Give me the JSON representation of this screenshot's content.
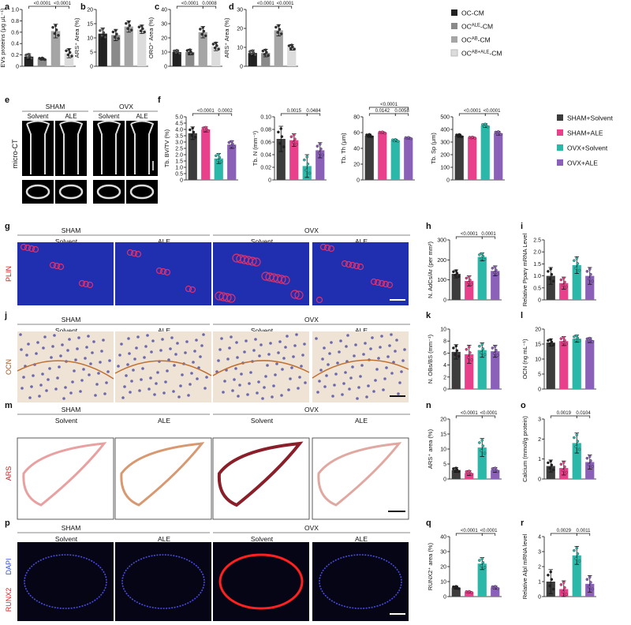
{
  "colors": {
    "oc": "#222222",
    "ocale": "#8a8a8a",
    "ocab": "#a5a5a5",
    "ocabale": "#dcdcdc",
    "sham_solvent": "#3c3c3c",
    "sham_ale": "#e8408a",
    "ovx_solvent": "#2bb8a8",
    "ovx_ale": "#8a60b8",
    "plin_bg": "#1f2fb0",
    "ocn_bg": "#efe3d6",
    "ars_bg": "#ffffff",
    "runx_bg": "#050515"
  },
  "letters": [
    "a",
    "b",
    "c",
    "d",
    "e",
    "f",
    "g",
    "h",
    "i",
    "j",
    "k",
    "l",
    "m",
    "n",
    "o",
    "p",
    "q",
    "r"
  ],
  "legend_top": [
    "OC-CM",
    "OC^ALE-CM",
    "OC^AB-CM",
    "OC^AB+ALE-CM"
  ],
  "legend_mid": [
    "SHAM+Solvent",
    "SHAM+ALE",
    "OVX+Solvent",
    "OVX+ALE"
  ],
  "micro_ct_label": "micro-CT",
  "row_labels": {
    "g": "PLIN",
    "j": "OCN",
    "m": "ARS",
    "p_runx": "RUNX2",
    "p_dapi": "DAPI"
  },
  "group_headers": {
    "sham": "SHAM",
    "ovx": "OVX"
  },
  "treat_labels": [
    "Solvent",
    "ALE",
    "Solvent",
    "ALE"
  ],
  "chart_data": [
    {
      "id": "a",
      "type": "bar",
      "categories": [
        "OC-CM",
        "OC^ALE-CM",
        "OC^AB-CM",
        "OC^AB+ALE-CM"
      ],
      "values": [
        0.17,
        0.13,
        0.62,
        0.23
      ],
      "errors": [
        0.05,
        0.02,
        0.12,
        0.08
      ],
      "ylabel": "EVs proteins (μg μL⁻¹)",
      "ylim": [
        0,
        1.0
      ],
      "yticks": [
        "0",
        "0.2",
        "0.4",
        "0.6",
        "0.8",
        "1.0"
      ],
      "sig": [
        {
          "from": 0,
          "to": 2,
          "text": "<0.0001"
        },
        {
          "from": 2,
          "to": 3,
          "text": "<0.0001"
        }
      ]
    },
    {
      "id": "b",
      "type": "bar",
      "categories": [
        "OC-CM",
        "OC^ALE-CM",
        "OC^AB-CM",
        "OC^AB+ALE-CM"
      ],
      "values": [
        11.5,
        11,
        14,
        13
      ],
      "errors": [
        2,
        2,
        2,
        1.5
      ],
      "ylabel": "ARS⁺ Area (%)",
      "ylim": [
        0,
        20
      ],
      "yticks": [
        "0",
        "5",
        "10",
        "15",
        "20"
      ],
      "sig": []
    },
    {
      "id": "c",
      "type": "bar",
      "categories": [
        "OC-CM",
        "OC^ALE-CM",
        "OC^AB-CM",
        "OC^AB+ALE-CM"
      ],
      "values": [
        10,
        10,
        24,
        14
      ],
      "errors": [
        1.5,
        2,
        4,
        3
      ],
      "ylabel": "ORO⁺ Area (%)",
      "ylim": [
        0,
        40
      ],
      "yticks": [
        "0",
        "10",
        "20",
        "30",
        "40"
      ],
      "sig": [
        {
          "from": 0,
          "to": 2,
          "text": "<0.0001"
        },
        {
          "from": 2,
          "to": 3,
          "text": "0.0008"
        }
      ]
    },
    {
      "id": "d",
      "type": "bar",
      "categories": [
        "OC-CM",
        "OC^ALE-CM",
        "OC^AB-CM",
        "OC^AB+ALE-CM"
      ],
      "values": [
        7,
        7,
        19,
        10
      ],
      "errors": [
        1.5,
        2,
        3,
        1.5
      ],
      "ylabel": "ARS⁺ Area (%)",
      "ylim": [
        0,
        30
      ],
      "yticks": [
        "0",
        "10",
        "20",
        "30"
      ],
      "sig": [
        {
          "from": 0,
          "to": 2,
          "text": "<0.0001"
        },
        {
          "from": 2,
          "to": 3,
          "text": "<0.0001"
        }
      ]
    },
    {
      "id": "f1",
      "type": "bar",
      "categories": [
        "SHAM+Solvent",
        "SHAM+ALE",
        "OVX+Solvent",
        "OVX+ALE"
      ],
      "values": [
        3.7,
        4.0,
        1.7,
        2.8
      ],
      "errors": [
        0.5,
        0.2,
        0.4,
        0.3
      ],
      "ylabel": "Tb. BV/TV (%)",
      "ylim": [
        0,
        5
      ],
      "yticks": [
        "0",
        "0.5",
        "1.0",
        "1.5",
        "2.0",
        "2.5",
        "3.0",
        "3.5",
        "4.0",
        "4.5",
        "5.0"
      ],
      "sig": [
        {
          "from": 0,
          "to": 2,
          "text": "<0.0001"
        },
        {
          "from": 2,
          "to": 3,
          "text": "0.0002"
        }
      ]
    },
    {
      "id": "f2",
      "type": "bar",
      "categories": [
        "SHAM+Solvent",
        "SHAM+ALE",
        "OVX+Solvent",
        "OVX+ALE"
      ],
      "values": [
        0.065,
        0.063,
        0.022,
        0.047
      ],
      "errors": [
        0.02,
        0.01,
        0.018,
        0.012
      ],
      "ylabel": "Tb. N (mm⁻¹)",
      "ylim": [
        0,
        0.1
      ],
      "yticks": [
        "0",
        "0.02",
        "0.04",
        "0.06",
        "0.08",
        "0.10"
      ],
      "sig": [
        {
          "from": 0,
          "to": 2,
          "text": "0.0015"
        },
        {
          "from": 2,
          "to": 3,
          "text": "0.0484"
        }
      ]
    },
    {
      "id": "f3",
      "type": "bar",
      "categories": [
        "SHAM+Solvent",
        "SHAM+ALE",
        "OVX+Solvent",
        "OVX+ALE"
      ],
      "values": [
        56,
        60,
        50,
        53
      ],
      "errors": [
        2,
        1,
        1.5,
        1
      ],
      "ylabel": "Tb. Th (μm)",
      "ylim": [
        0,
        80
      ],
      "yticks": [
        "0",
        "20",
        "40",
        "60",
        "80"
      ],
      "sig": [
        {
          "from": 0,
          "to": 2,
          "text": "0.0142"
        },
        {
          "from": 2,
          "to": 3,
          "text": "0.0058"
        },
        {
          "from": 0,
          "to": 3,
          "text": "<0.0001"
        }
      ]
    },
    {
      "id": "f4",
      "type": "bar",
      "categories": [
        "SHAM+Solvent",
        "SHAM+ALE",
        "OVX+Solvent",
        "OVX+ALE"
      ],
      "values": [
        350,
        335,
        430,
        370
      ],
      "errors": [
        12,
        5,
        15,
        15
      ],
      "ylabel": "Tb. Sp (μm)",
      "ylim": [
        0,
        500
      ],
      "yticks": [
        "0",
        "100",
        "200",
        "300",
        "400",
        "500"
      ],
      "sig": [
        {
          "from": 0,
          "to": 2,
          "text": "<0.0001"
        },
        {
          "from": 2,
          "to": 3,
          "text": "<0.0001"
        }
      ]
    },
    {
      "id": "h",
      "type": "bar",
      "categories": [
        "SHAM+Solvent",
        "SHAM+ALE",
        "OVX+Solvent",
        "OVX+ALE"
      ],
      "values": [
        130,
        95,
        215,
        145
      ],
      "errors": [
        20,
        25,
        20,
        25
      ],
      "ylabel": "N. AdCs/Ar (per mm²)",
      "ylim": [
        0,
        300
      ],
      "yticks": [
        "0",
        "100",
        "200",
        "300"
      ],
      "sig": [
        {
          "from": 0,
          "to": 2,
          "text": "<0.0001"
        },
        {
          "from": 2,
          "to": 3,
          "text": "0.0001"
        }
      ]
    },
    {
      "id": "i",
      "type": "bar",
      "categories": [
        "SHAM+Solvent",
        "SHAM+ALE",
        "OVX+Solvent",
        "OVX+ALE"
      ],
      "values": [
        1.0,
        0.7,
        1.45,
        1.0
      ],
      "errors": [
        0.35,
        0.25,
        0.35,
        0.35
      ],
      "ylabel": "Relative Pparγ mRNA Level",
      "ylim": [
        0,
        2.5
      ],
      "yticks": [
        "0",
        "0.5",
        "1.0",
        "1.5",
        "2.0",
        "2.5"
      ],
      "sig": []
    },
    {
      "id": "k",
      "type": "bar",
      "categories": [
        "SHAM+Solvent",
        "SHAM+ALE",
        "OVX+Solvent",
        "OVX+ALE"
      ],
      "values": [
        6.2,
        5.8,
        6.5,
        6.3
      ],
      "errors": [
        1.2,
        1.5,
        1.2,
        1
      ],
      "ylabel": "N. OBs/BS (mm⁻¹)",
      "ylim": [
        0,
        10
      ],
      "yticks": [
        "0",
        "2",
        "4",
        "6",
        "8",
        "10"
      ],
      "sig": []
    },
    {
      "id": "l",
      "type": "bar",
      "categories": [
        "SHAM+Solvent",
        "SHAM+ALE",
        "OVX+Solvent",
        "OVX+ALE"
      ],
      "values": [
        15.5,
        16,
        16.8,
        16.3
      ],
      "errors": [
        1.2,
        1.5,
        1.2,
        0.8
      ],
      "ylabel": "OCN (ng mL⁻¹)",
      "ylim": [
        0,
        20
      ],
      "yticks": [
        "0",
        "5",
        "10",
        "15",
        "20"
      ],
      "sig": []
    },
    {
      "id": "n",
      "type": "bar",
      "categories": [
        "SHAM+Solvent",
        "SHAM+ALE",
        "OVX+Solvent",
        "OVX+ALE"
      ],
      "values": [
        3,
        2,
        10.5,
        3
      ],
      "errors": [
        0.8,
        0.8,
        3,
        0.8
      ],
      "ylabel": "ARS⁺ area (%)",
      "ylim": [
        0,
        20
      ],
      "yticks": [
        "0",
        "5",
        "10",
        "15",
        "20"
      ],
      "sig": [
        {
          "from": 0,
          "to": 2,
          "text": "<0.0001"
        },
        {
          "from": 2,
          "to": 3,
          "text": "<0.0001"
        }
      ]
    },
    {
      "id": "o",
      "type": "bar",
      "categories": [
        "SHAM+Solvent",
        "SHAM+ALE",
        "OVX+Solvent",
        "OVX+ALE"
      ],
      "values": [
        0.65,
        0.55,
        1.8,
        0.85
      ],
      "errors": [
        0.3,
        0.35,
        0.5,
        0.35
      ],
      "ylabel": "Calcium (mmol/g protein)",
      "ylim": [
        0,
        3
      ],
      "yticks": [
        "0",
        "1",
        "2",
        "3"
      ],
      "sig": [
        {
          "from": 0,
          "to": 2,
          "text": "0.0019"
        },
        {
          "from": 2,
          "to": 3,
          "text": "0.0104"
        }
      ]
    },
    {
      "id": "q",
      "type": "bar",
      "categories": [
        "SHAM+Solvent",
        "SHAM+ALE",
        "OVX+Solvent",
        "OVX+ALE"
      ],
      "values": [
        6,
        3,
        22,
        6
      ],
      "errors": [
        1,
        0.5,
        4,
        1
      ],
      "ylabel": "RUNX2⁺ area (%)",
      "ylim": [
        0,
        40
      ],
      "yticks": [
        "0",
        "10",
        "20",
        "30",
        "40"
      ],
      "sig": [
        {
          "from": 0,
          "to": 2,
          "text": "<0.0001"
        },
        {
          "from": 2,
          "to": 3,
          "text": "<0.0001"
        }
      ]
    },
    {
      "id": "r",
      "type": "bar",
      "categories": [
        "SHAM+Solvent",
        "SHAM+ALE",
        "OVX+Solvent",
        "OVX+ALE"
      ],
      "values": [
        1.0,
        0.5,
        2.75,
        0.85
      ],
      "errors": [
        0.8,
        0.55,
        0.6,
        0.55
      ],
      "ylabel": "Relative Alpl mRNA level",
      "ylim": [
        0,
        4
      ],
      "yticks": [
        "0",
        "1",
        "2",
        "3",
        "4"
      ],
      "sig": [
        {
          "from": 0,
          "to": 2,
          "text": "0.0029"
        },
        {
          "from": 2,
          "to": 3,
          "text": "0.0011"
        }
      ]
    }
  ]
}
